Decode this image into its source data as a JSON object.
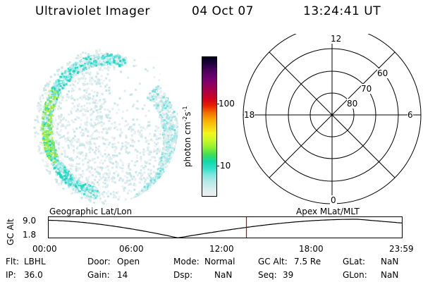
{
  "header": {
    "title": "Ultraviolet Imager",
    "date": "04 Oct 07",
    "time": "13:24:41 UT"
  },
  "colorbar": {
    "label": "photon cm",
    "sup1": "-2",
    "mid": "s",
    "sup2": "-1",
    "ticks": [
      "100",
      "10"
    ],
    "colors": [
      "#f0f0f0",
      "#d8eeee",
      "#b8e8e8",
      "#80e8e0",
      "#30e0c8",
      "#10d8a8",
      "#40e050",
      "#90f030",
      "#c8f828",
      "#f0f818",
      "#f8d010",
      "#f8a800",
      "#f07000",
      "#e82000",
      "#d00020",
      "#b00040",
      "#900060",
      "#700070",
      "#500060",
      "#200040",
      "#000018"
    ]
  },
  "polar": {
    "mlt": {
      "top": "12",
      "bottom": "0",
      "left": "18",
      "right": "6"
    },
    "lat": [
      "60",
      "70",
      "80"
    ]
  },
  "timeline": {
    "left_title": "Geographic Lat/Lon",
    "right_title": "Apex  MLat/MLT",
    "ylabel": "GC Alt",
    "yticks": [
      "9.0",
      "1.8"
    ],
    "xticks": [
      "00:00",
      "06:00",
      "12:00",
      "18:00",
      "23:59"
    ],
    "marker_time_fraction": 0.5588,
    "curve_color": "#000000",
    "marker_color": "#d00000"
  },
  "info": {
    "filt_label": "Flt:",
    "filt_value": "LBHL",
    "ip_label": "IP:",
    "ip_value": "36.0",
    "door_label": "Door:",
    "door_value": "Open",
    "gain_label": "Gain:",
    "gain_value": "14",
    "mode_label": "Mode:",
    "mode_value": "Normal",
    "dsp_label": "Dsp:",
    "dsp_value": "NaN",
    "gcalt_label": "GC Alt:",
    "gcalt_value": "7.5 Re",
    "seq_label": "Seq:",
    "seq_value": "39",
    "glat_label": "GLat:",
    "glat_value": "NaN",
    "glon_label": "GLon:",
    "glon_value": "NaN"
  }
}
